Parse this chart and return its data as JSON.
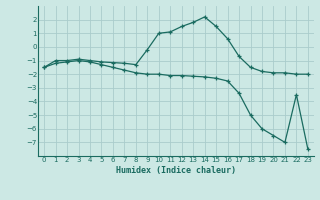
{
  "xlabel": "Humidex (Indice chaleur)",
  "background_color": "#cce8e4",
  "grid_color": "#aacccc",
  "line_color": "#1a6b60",
  "x_values": [
    0,
    1,
    2,
    3,
    4,
    5,
    6,
    7,
    8,
    9,
    10,
    11,
    12,
    13,
    14,
    15,
    16,
    17,
    18,
    19,
    20,
    21,
    22,
    23
  ],
  "line1_y": [
    -1.5,
    -1.0,
    -1.0,
    -0.9,
    -1.0,
    -1.1,
    -1.15,
    -1.2,
    -1.3,
    -0.2,
    1.0,
    1.1,
    1.5,
    1.8,
    2.2,
    1.5,
    0.6,
    -0.7,
    -1.5,
    -1.8,
    -1.9,
    -1.9,
    -2.0,
    -2.0
  ],
  "line2_y": [
    -1.5,
    -1.2,
    -1.1,
    -1.0,
    -1.1,
    -1.3,
    -1.5,
    -1.7,
    -1.9,
    -2.0,
    -2.0,
    -2.1,
    -2.1,
    -2.15,
    -2.2,
    -2.3,
    -2.5,
    -3.4,
    -5.0,
    -6.0,
    -6.5,
    -7.0,
    -3.5,
    -7.5
  ],
  "ylim": [
    -8,
    3
  ],
  "xlim": [
    -0.5,
    23.5
  ],
  "yticks": [
    -7,
    -6,
    -5,
    -4,
    -3,
    -2,
    -1,
    0,
    1,
    2
  ],
  "xticks": [
    0,
    1,
    2,
    3,
    4,
    5,
    6,
    7,
    8,
    9,
    10,
    11,
    12,
    13,
    14,
    15,
    16,
    17,
    18,
    19,
    20,
    21,
    22,
    23
  ]
}
